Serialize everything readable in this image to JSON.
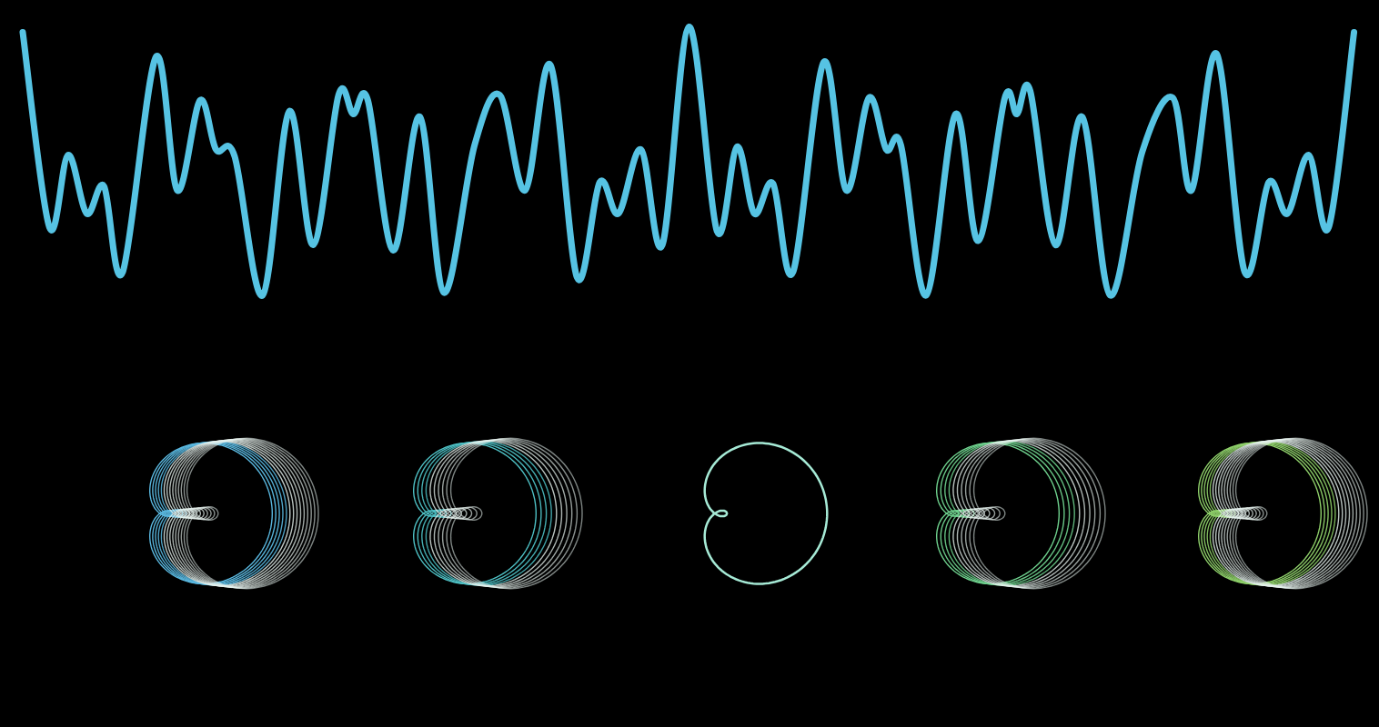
{
  "chart_data": {
    "type": "line",
    "color": "#56c3e3",
    "grid": false,
    "tick_labels": false,
    "xlim": [
      0,
      100
    ],
    "ylim": [
      -1.1,
      1.1
    ],
    "x": [
      0,
      2.0,
      3.4,
      4.8,
      6.1,
      7.5,
      10.0,
      11.6,
      13.3,
      14.5,
      15.9,
      18.0,
      20.0,
      21.8,
      23.7,
      24.8,
      25.9,
      27.8,
      29.8,
      31.6,
      33.9,
      35.8,
      37.7,
      39.6,
      41.6,
      43.3,
      44.7,
      46.4,
      48.0,
      50.0,
      52.1,
      53.6,
      54.9,
      56.3,
      57.8,
      60.1,
      61.8,
      63.5,
      64.8,
      65.9,
      67.8,
      70.0,
      71.7,
      73.7,
      74.6,
      75.6,
      77.5,
      79.5,
      81.6,
      84.0,
      86.3,
      87.7,
      89.6,
      91.7,
      93.5,
      94.9,
      96.5,
      98.0,
      99.9
    ],
    "values": [
      0.93,
      -0.5,
      0.03,
      -0.4,
      -0.2,
      -0.83,
      0.75,
      -0.23,
      0.43,
      0.07,
      0.02,
      -1.0,
      0.35,
      -0.63,
      0.47,
      0.33,
      0.43,
      -0.67,
      0.31,
      -0.98,
      0.1,
      0.47,
      -0.23,
      0.69,
      -0.87,
      -0.17,
      -0.4,
      0.07,
      -0.63,
      0.97,
      -0.53,
      0.09,
      -0.4,
      -0.18,
      -0.83,
      0.71,
      -0.23,
      0.45,
      0.07,
      0.1,
      -1.0,
      0.33,
      -0.6,
      0.45,
      0.33,
      0.5,
      -0.63,
      0.31,
      -1.0,
      0.05,
      0.45,
      -0.23,
      0.77,
      -0.83,
      -0.17,
      -0.4,
      0.03,
      -0.5,
      0.93
    ]
  }
}
